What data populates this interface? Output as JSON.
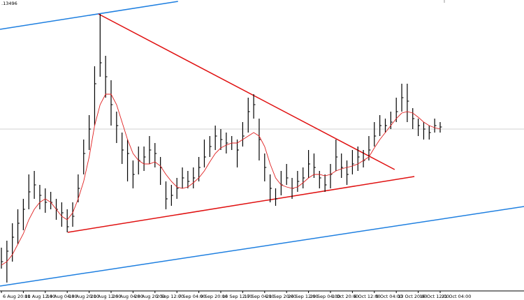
{
  "chart_data": {
    "type": "ohlc",
    "price_label": ".13496",
    "categories": [
      "6 Aug 20:00",
      null,
      null,
      null,
      "11 Aug 12:00",
      null,
      null,
      null,
      "14 Aug 04:00",
      null,
      null,
      null,
      "18 Aug 20:00",
      null,
      null,
      null,
      "21 Aug 12:00",
      null,
      null,
      null,
      "26 Aug 04:00",
      null,
      null,
      null,
      "28 Aug 20:00",
      null,
      null,
      null,
      "2 Sep 12:00",
      null,
      null,
      null,
      "7 Sep 04:00",
      null,
      null,
      null,
      "9 Sep 20:00",
      null,
      null,
      null,
      "14 Sep 12:00",
      null,
      null,
      null,
      "17 Sep 04:00",
      null,
      null,
      null,
      "21 Sep 20:00",
      null,
      null,
      null,
      "24 Sep 12:00",
      null,
      null,
      null,
      "29 Sep 04:00",
      null,
      null,
      null,
      "1 Oct 20:00",
      null,
      null,
      null,
      "6 Oct 12:00",
      null,
      null,
      null,
      "9 Oct 04:00",
      null,
      null,
      null,
      "13 Oct 20:00",
      null,
      null,
      null,
      "16 Oct 12:00",
      null,
      null,
      null,
      "21 Oct 04:00"
    ],
    "ylim": [
      0,
      410
    ],
    "price": {
      "color": "#000000",
      "high": [
        55,
        65,
        90,
        110,
        125,
        160,
        165,
        145,
        140,
        135,
        125,
        120,
        110,
        120,
        160,
        210,
        245,
        315,
        390,
        330,
        295,
        250,
        220,
        210,
        180,
        200,
        200,
        215,
        205,
        185,
        150,
        145,
        155,
        170,
        165,
        170,
        185,
        210,
        215,
        230,
        225,
        220,
        215,
        210,
        235,
        270,
        275,
        240,
        190,
        160,
        140,
        165,
        175,
        155,
        165,
        170,
        195,
        190,
        165,
        160,
        175,
        210,
        190,
        180,
        195,
        200,
        195,
        215,
        235,
        245,
        240,
        250,
        270,
        290,
        290,
        255,
        240,
        235,
        230,
        240,
        235
      ],
      "low": [
        25,
        5,
        35,
        60,
        80,
        110,
        125,
        110,
        105,
        110,
        95,
        85,
        77,
        85,
        120,
        160,
        195,
        230,
        300,
        270,
        230,
        205,
        175,
        150,
        140,
        160,
        165,
        175,
        170,
        145,
        110,
        115,
        125,
        140,
        140,
        140,
        150,
        170,
        185,
        195,
        195,
        190,
        195,
        170,
        200,
        220,
        240,
        180,
        150,
        120,
        115,
        130,
        145,
        125,
        135,
        140,
        155,
        155,
        140,
        135,
        140,
        165,
        155,
        145,
        160,
        165,
        170,
        180,
        200,
        215,
        220,
        225,
        235,
        250,
        235,
        225,
        215,
        210,
        210,
        220,
        220
      ],
      "close": [
        35,
        50,
        70,
        90,
        110,
        135,
        145,
        130,
        120,
        120,
        110,
        105,
        85,
        100,
        140,
        190,
        225,
        290,
        320,
        300,
        260,
        230,
        195,
        190,
        160,
        180,
        185,
        195,
        190,
        170,
        125,
        130,
        140,
        155,
        150,
        155,
        170,
        185,
        200,
        215,
        210,
        205,
        205,
        195,
        215,
        250,
        260,
        210,
        170,
        140,
        125,
        145,
        155,
        140,
        150,
        155,
        175,
        170,
        155,
        145,
        160,
        185,
        170,
        160,
        175,
        185,
        180,
        195,
        215,
        230,
        230,
        235,
        250,
        270,
        265,
        240,
        230,
        225,
        220,
        230,
        228
      ]
    },
    "ma": {
      "color": "#e02020",
      "values": [
        30,
        35,
        45,
        60,
        75,
        95,
        110,
        120,
        125,
        120,
        110,
        100,
        95,
        105,
        125,
        150,
        185,
        230,
        260,
        275,
        275,
        260,
        235,
        210,
        190,
        180,
        175,
        175,
        178,
        172,
        160,
        150,
        142,
        140,
        142,
        148,
        155,
        165,
        178,
        190,
        198,
        202,
        205,
        205,
        210,
        215,
        220,
        215,
        200,
        175,
        155,
        145,
        142,
        140,
        142,
        148,
        155,
        160,
        160,
        158,
        160,
        165,
        168,
        170,
        172,
        175,
        180,
        185,
        198,
        210,
        220,
        230,
        240,
        248,
        250,
        248,
        242,
        235,
        230,
        227,
        225
      ]
    },
    "hline": {
      "value": 225,
      "color": "#c0c0c0"
    },
    "trendlines": [
      {
        "color": "#1e7fe0",
        "x": [
          -0.25,
          32.2
        ],
        "values": [
          368,
          408
        ]
      },
      {
        "color": "#1e7fe0",
        "x": [
          -0.25,
          95.3
        ],
        "values": [
          0,
          114
        ]
      },
      {
        "color": "#e01010",
        "x": [
          17.7,
          71.7
        ],
        "values": [
          390,
          167
        ]
      },
      {
        "color": "#e01010",
        "x": [
          12.1,
          75.3
        ],
        "values": [
          77,
          157
        ]
      }
    ]
  }
}
